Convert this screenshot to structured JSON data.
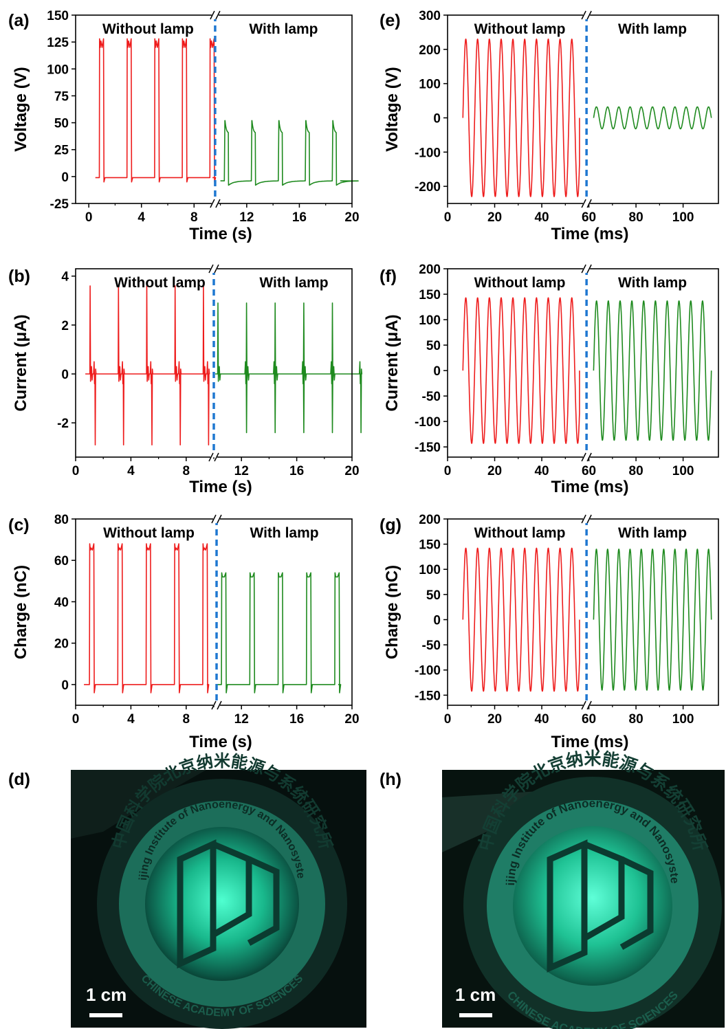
{
  "colors": {
    "without_lamp": "#ee1c1c",
    "with_lamp": "#1e8a1e",
    "divider": "#1f78d1",
    "photo_glow": "#23d6a0"
  },
  "chart_data": [
    {
      "panel": "(a)",
      "type": "line",
      "xlabel": "Time (s)",
      "ylabel": "Voltage (V)",
      "xlim": [
        -1,
        20
      ],
      "ylim": [
        -25,
        150
      ],
      "xticks": [
        0,
        4,
        8,
        12,
        16,
        20
      ],
      "yticks": [
        -25,
        0,
        25,
        50,
        75,
        100,
        125,
        150
      ],
      "axis_break_x": 9.6,
      "regions": [
        {
          "label": "Without lamp"
        },
        {
          "label": "With lamp"
        }
      ],
      "series": [
        {
          "shape": "square",
          "region": "without",
          "color": "red",
          "x": [
            0.5,
            9.4
          ],
          "period": 2.1,
          "count": 5,
          "first": 0.8,
          "high": 120,
          "peak": 128,
          "low": -1,
          "width": 0.35
        },
        {
          "shape": "decay",
          "region": "with",
          "color": "green",
          "x": [
            10.0,
            19.1
          ],
          "period": 2.05,
          "count": 5,
          "first": 10.3,
          "peak": 52,
          "plateau": 40,
          "low": -8,
          "settle": -4
        }
      ]
    },
    {
      "panel": "(b)",
      "type": "line",
      "xlabel": "Time (s)",
      "ylabel": "Current (μA)",
      "xlim": [
        0,
        20
      ],
      "ylim": [
        -3.4,
        4.3
      ],
      "xticks": [
        0,
        4,
        8,
        12,
        16,
        20
      ],
      "yticks": [
        -2,
        0,
        2,
        4
      ],
      "axis_break_x": 10.0,
      "regions": [
        {
          "label": "Without lamp"
        },
        {
          "label": "With lamp"
        }
      ],
      "series": [
        {
          "shape": "spike",
          "region": "without",
          "color": "red",
          "x": [
            0.7,
            9.5
          ],
          "period": 2.05,
          "count": 5,
          "first": 1.05,
          "up": 3.6,
          "down": -2.9,
          "gap": 0.35
        },
        {
          "shape": "spike",
          "region": "with",
          "color": "green",
          "x": [
            10.1,
            19.0
          ],
          "period": 2.07,
          "count": 5,
          "first": 10.3,
          "up": 2.9,
          "down": -2.4,
          "gap": 2.05
        }
      ]
    },
    {
      "panel": "(c)",
      "type": "line",
      "xlabel": "Time (s)",
      "ylabel": "Charge (nC)",
      "xlim": [
        0,
        20
      ],
      "ylim": [
        -10,
        80
      ],
      "xticks": [
        0,
        4,
        8,
        12,
        16,
        20
      ],
      "yticks": [
        0,
        20,
        40,
        60,
        80
      ],
      "axis_break_x": 10.2,
      "regions": [
        {
          "label": "Without lamp"
        },
        {
          "label": "With lamp"
        }
      ],
      "series": [
        {
          "shape": "square",
          "region": "without",
          "color": "red",
          "x": [
            0.6,
            9.5
          ],
          "period": 2.05,
          "count": 5,
          "first": 1.0,
          "high": 65,
          "peak": 68,
          "low": 0,
          "width": 0.35
        },
        {
          "shape": "square",
          "region": "with",
          "color": "green",
          "x": [
            10.2,
            19.0
          ],
          "period": 2.05,
          "count": 5,
          "first": 10.55,
          "high": 52,
          "peak": 54,
          "low": 0,
          "width": 0.35
        }
      ]
    },
    {
      "panel": "(e)",
      "type": "line",
      "xlabel": "Time (ms)",
      "ylabel": "Voltage (V)",
      "xlim": [
        0,
        115
      ],
      "ylim": [
        -250,
        300
      ],
      "xticks": [
        0,
        20,
        40,
        60,
        80,
        100
      ],
      "yticks": [
        -200,
        -100,
        0,
        100,
        200,
        300
      ],
      "axis_break_x": 59,
      "regions": [
        {
          "label": "Without lamp"
        },
        {
          "label": "With lamp"
        }
      ],
      "series": [
        {
          "shape": "sine",
          "region": "without",
          "color": "red",
          "x": [
            6.5,
            56
          ],
          "freq_per_ms": 0.2,
          "amplitude": 230
        },
        {
          "shape": "sine",
          "region": "with",
          "color": "green",
          "x": [
            62,
            112
          ],
          "freq_per_ms": 0.21,
          "amplitude": 32
        }
      ]
    },
    {
      "panel": "(f)",
      "type": "line",
      "xlabel": "Time (ms)",
      "ylabel": "Current (μA)",
      "xlim": [
        0,
        115
      ],
      "ylim": [
        -170,
        200
      ],
      "xticks": [
        0,
        20,
        40,
        60,
        80,
        100
      ],
      "yticks": [
        -150,
        -100,
        -50,
        0,
        50,
        100,
        150,
        200
      ],
      "axis_break_x": 59,
      "regions": [
        {
          "label": "Without lamp"
        },
        {
          "label": "With lamp"
        }
      ],
      "series": [
        {
          "shape": "sine",
          "region": "without",
          "color": "red",
          "x": [
            6.5,
            56
          ],
          "freq_per_ms": 0.2,
          "amplitude": 143
        },
        {
          "shape": "sine",
          "region": "with",
          "color": "green",
          "x": [
            62,
            112
          ],
          "freq_per_ms": 0.2,
          "amplitude": 137
        }
      ]
    },
    {
      "panel": "(g)",
      "type": "line",
      "xlabel": "Time (ms)",
      "ylabel": "Charge (nC)",
      "xlim": [
        0,
        115
      ],
      "ylim": [
        -170,
        200
      ],
      "xticks": [
        0,
        20,
        40,
        60,
        80,
        100
      ],
      "yticks": [
        -150,
        -100,
        -50,
        0,
        50,
        100,
        150,
        200
      ],
      "axis_break_x": 59,
      "regions": [
        {
          "label": "Without lamp"
        },
        {
          "label": "With lamp"
        }
      ],
      "series": [
        {
          "shape": "sine",
          "region": "without",
          "color": "red",
          "x": [
            6.5,
            56
          ],
          "freq_per_ms": 0.2,
          "amplitude": 142
        },
        {
          "shape": "sine",
          "region": "with",
          "color": "green",
          "x": [
            62,
            112
          ],
          "freq_per_ms": 0.21,
          "amplitude": 140
        }
      ]
    }
  ],
  "photos": [
    {
      "panel": "(d)",
      "ring_text_cn": "中国科学院北京纳米能源与系统研究所",
      "ring_text_en": "Beijing Institute of Nanoenergy and Nanosystems",
      "bottom_text": "CHINESE ACADEMY OF SCIENCES",
      "scale_bar": "1 cm"
    },
    {
      "panel": "(h)",
      "ring_text_cn": "中国科学院北京纳米能源与系统研究所",
      "ring_text_en": "Beijing Institute of Nanoenergy and Nanosystems",
      "bottom_text": "CHINESE ACADEMY OF SCIENCES",
      "scale_bar": "1 cm"
    }
  ]
}
